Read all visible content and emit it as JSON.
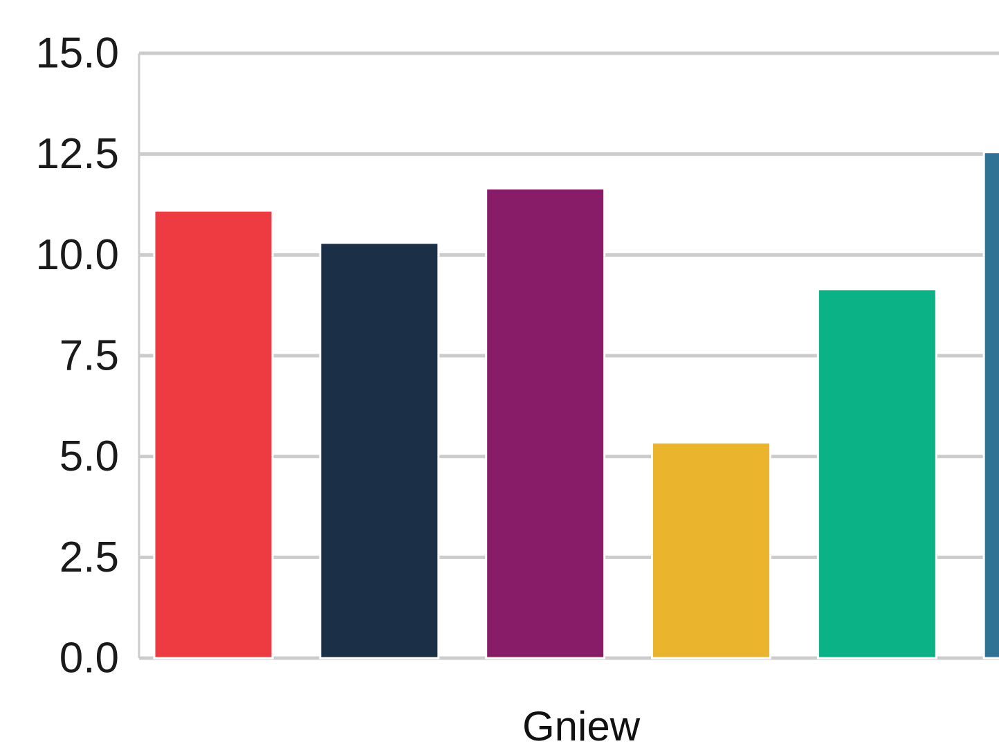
{
  "chart_data": {
    "type": "bar",
    "categories": [
      "Gniew"
    ],
    "series": [
      {
        "values": [
          11.1
        ],
        "color": "#ee3a41"
      },
      {
        "values": [
          10.3
        ],
        "color": "#1b2f47"
      },
      {
        "values": [
          11.65
        ],
        "color": "#881c69"
      },
      {
        "values": [
          5.35
        ],
        "color": "#ebb42d"
      },
      {
        "values": [
          9.15
        ],
        "color": "#0bb286"
      },
      {
        "values": [
          12.55
        ],
        "color": "#2f7294"
      }
    ],
    "yticks": [
      "0.0",
      "2.5",
      "5.0",
      "7.5",
      "10.0",
      "12.5",
      "15.0"
    ],
    "ylim": [
      0,
      15
    ],
    "title": "",
    "xlabel": "",
    "ylabel": "",
    "grid": true,
    "legend": "none"
  }
}
